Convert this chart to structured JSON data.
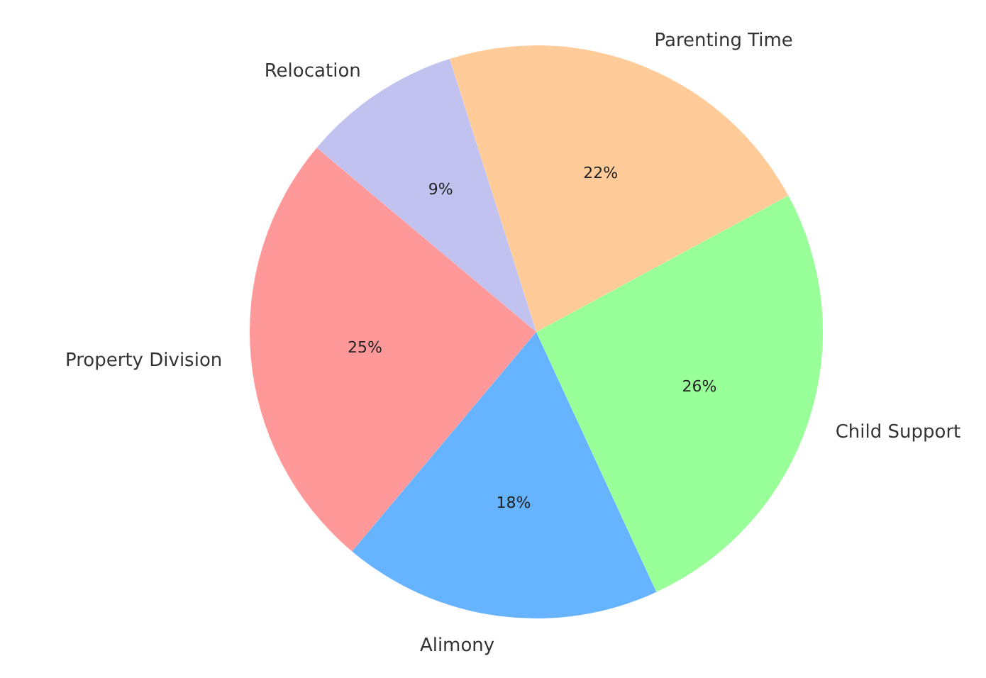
{
  "chart_data": {
    "type": "pie",
    "categories": [
      "Property Division",
      "Alimony",
      "Child Support",
      "Parenting Time",
      "Relocation"
    ],
    "values": [
      25,
      18,
      26,
      22,
      9
    ],
    "colors": [
      "#ff9999",
      "#66b3ff",
      "#99ff99",
      "#ffcc99",
      "#c2c2f0"
    ],
    "value_labels": [
      "25%",
      "18%",
      "26%",
      "22%",
      "9%"
    ]
  }
}
